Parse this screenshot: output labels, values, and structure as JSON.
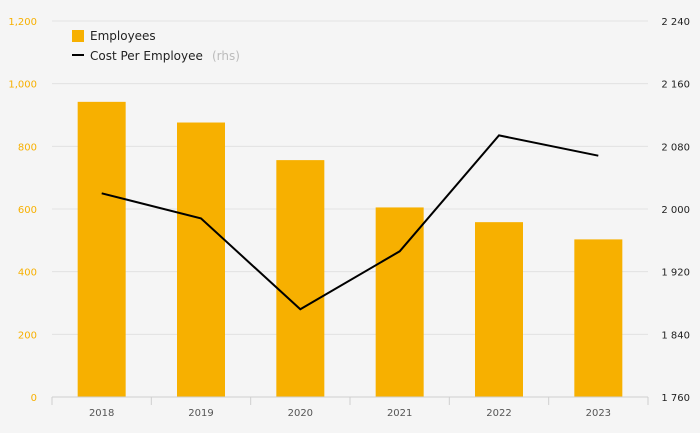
{
  "chart_data": {
    "type": "bar+line",
    "categories": [
      "2018",
      "2019",
      "2020",
      "2021",
      "2022",
      "2023"
    ],
    "series": [
      {
        "name": "Employees",
        "type": "bar",
        "axis": "left",
        "color": "#f7b000",
        "values": [
          942,
          876,
          756,
          605,
          558,
          503
        ]
      },
      {
        "name": "Cost Per Employee",
        "type": "line",
        "axis": "right",
        "color": "#000000",
        "values": [
          2020,
          1988,
          1872,
          1946,
          2094,
          2068
        ]
      }
    ],
    "legend_note": "(rhs)",
    "y_left": {
      "min": 0,
      "max": 1200,
      "ticks": [
        0,
        200,
        400,
        600,
        800,
        1000,
        1200
      ],
      "tick_labels": [
        "0",
        "200",
        "400",
        "600",
        "800",
        "1,000",
        "1,200"
      ],
      "color": "#f7b000"
    },
    "y_right": {
      "min": 1760,
      "max": 2240,
      "ticks": [
        1760,
        1840,
        1920,
        2000,
        2080,
        2160,
        2240
      ],
      "tick_labels": [
        "1 760",
        "1 840",
        "1 920",
        "2 000",
        "2 080",
        "2 160",
        "2 240"
      ],
      "color": "#222222"
    },
    "grid": true,
    "legend_position": "top-left"
  }
}
